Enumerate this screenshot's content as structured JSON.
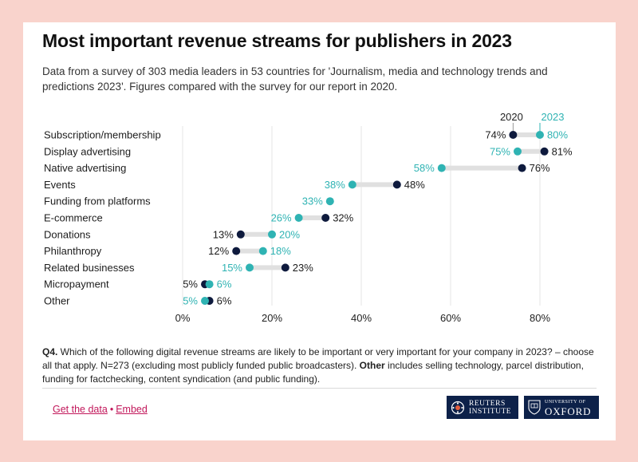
{
  "title": "Most important revenue streams for publishers in 2023",
  "subtitle": "Data from a survey of 303 media leaders in 53 countries for 'Journalism, media and technology trends and predictions 2023'. Figures compared with the survey for our report in 2020.",
  "note": {
    "lead": "Q4.",
    "text1": " Which of the following digital revenue streams are likely to be important or very important for your company in 2023? – choose all that apply. N=273 (excluding most publicly funded public broadcasters). ",
    "bold": "Other",
    "text2": " includes selling technology, parcel distribution, funding for factchecking, content syndication (and public funding)."
  },
  "footer": {
    "get_data": "Get the data",
    "separator": "•",
    "embed": "Embed",
    "reuters_line1": "REUTERS",
    "reuters_line2": "INSTITUTE",
    "oxford_line1": "UNIVERSITY OF",
    "oxford_line2": "OXFORD"
  },
  "colors": {
    "y2020": "#0e1a3d",
    "y2023": "#2fb3b3",
    "connector": "#e0e0e0",
    "grid": "#e6e6e6"
  },
  "chart_data": {
    "type": "dot",
    "xlim": [
      0,
      90
    ],
    "xticks": [
      0,
      20,
      40,
      60,
      80
    ],
    "tick_suffix": "%",
    "grid": true,
    "series_labels": [
      "2020",
      "2023"
    ],
    "categories": [
      "Subscription/membership",
      "Display advertising",
      "Native advertising",
      "Events",
      "Funding from platforms",
      "E-commerce",
      "Donations",
      "Philanthropy",
      "Related businesses",
      "Micropayment",
      "Other"
    ],
    "series": [
      {
        "name": "2020",
        "values": [
          74,
          81,
          76,
          48,
          null,
          32,
          13,
          12,
          23,
          5,
          6
        ]
      },
      {
        "name": "2023",
        "values": [
          80,
          75,
          58,
          38,
          33,
          26,
          20,
          18,
          15,
          6,
          5
        ]
      }
    ]
  }
}
